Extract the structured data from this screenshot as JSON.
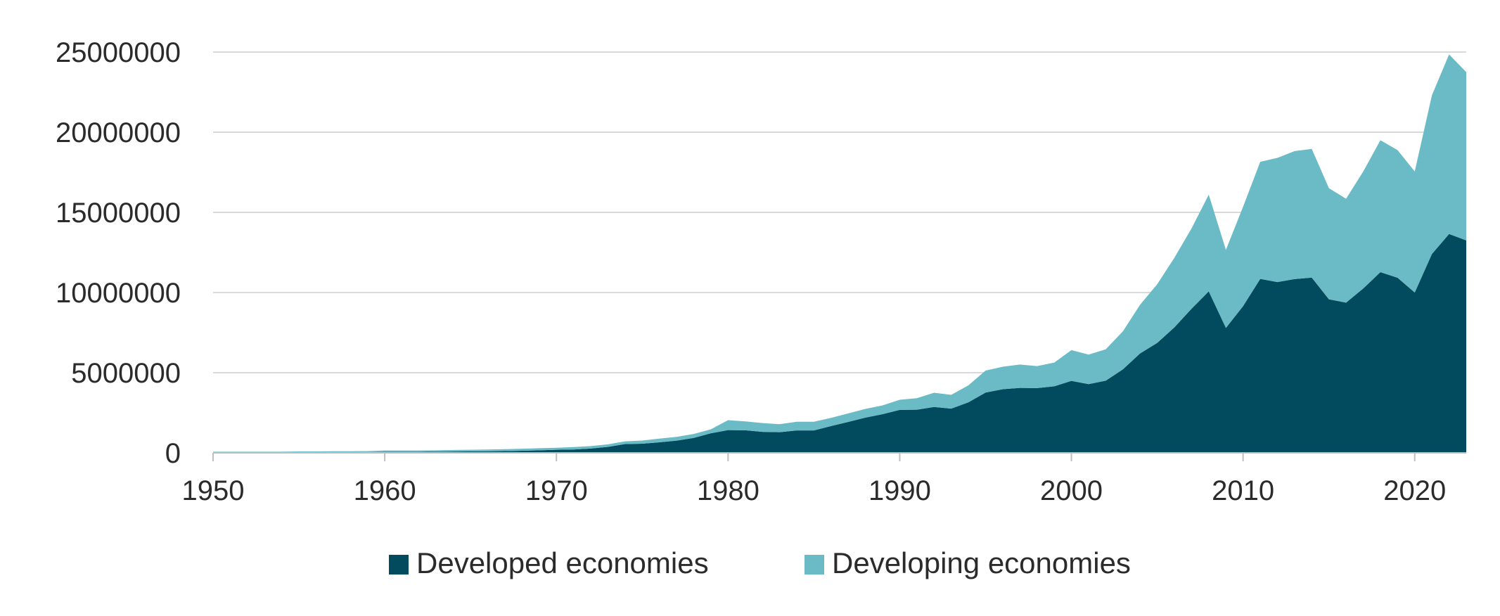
{
  "colors": {
    "developed": "#024A5E",
    "developing": "#6BBBC6",
    "grid": "#d9d9d9",
    "axis": "#bfbfbf",
    "text": "#2b2b2b"
  },
  "chart_data": {
    "type": "area",
    "stacked": true,
    "title": "",
    "xlabel": "",
    "ylabel": "",
    "xlim": [
      1950,
      2023
    ],
    "ylim": [
      0,
      25000000
    ],
    "grid": true,
    "legend_position": "bottom",
    "x_ticks": [
      "1950",
      "1960",
      "1970",
      "1980",
      "1990",
      "2000",
      "2010",
      "2020"
    ],
    "y_ticks": [
      "0",
      "5000000",
      "10000000",
      "15000000",
      "20000000",
      "25000000"
    ],
    "x": [
      1950,
      1951,
      1952,
      1953,
      1954,
      1955,
      1956,
      1957,
      1958,
      1959,
      1960,
      1961,
      1962,
      1963,
      1964,
      1965,
      1966,
      1967,
      1968,
      1969,
      1970,
      1971,
      1972,
      1973,
      1974,
      1975,
      1976,
      1977,
      1978,
      1979,
      1980,
      1981,
      1982,
      1983,
      1984,
      1985,
      1986,
      1987,
      1988,
      1989,
      1990,
      1991,
      1992,
      1993,
      1994,
      1995,
      1996,
      1997,
      1998,
      1999,
      2000,
      2001,
      2002,
      2003,
      2004,
      2005,
      2006,
      2007,
      2008,
      2009,
      2010,
      2011,
      2012,
      2013,
      2014,
      2015,
      2016,
      2017,
      2018,
      2019,
      2020,
      2021,
      2022,
      2023
    ],
    "series": [
      {
        "name": "Developed economies",
        "color_key": "developed",
        "values": [
          30000,
          30000,
          30000,
          30000,
          30000,
          40000,
          40000,
          40000,
          40000,
          50000,
          60000,
          60000,
          60000,
          70000,
          80000,
          90000,
          100000,
          110000,
          130000,
          160000,
          190000,
          210000,
          270000,
          370000,
          550000,
          570000,
          660000,
          760000,
          930000,
          1220000,
          1420000,
          1410000,
          1310000,
          1290000,
          1400000,
          1400000,
          1670000,
          1930000,
          2200000,
          2410000,
          2680000,
          2690000,
          2860000,
          2760000,
          3150000,
          3760000,
          3970000,
          4050000,
          4040000,
          4150000,
          4490000,
          4290000,
          4500000,
          5210000,
          6200000,
          6860000,
          7830000,
          8990000,
          10070000,
          7790000,
          9150000,
          10850000,
          10650000,
          10840000,
          10930000,
          9580000,
          9370000,
          10250000,
          11270000,
          10920000,
          10000000,
          12400000,
          13650000,
          13250000
        ]
      },
      {
        "name": "Developing economies",
        "color_key": "developing",
        "values": [
          40000,
          40000,
          40000,
          40000,
          40000,
          50000,
          50000,
          60000,
          60000,
          60000,
          90000,
          90000,
          90000,
          90000,
          100000,
          100000,
          110000,
          120000,
          130000,
          130000,
          130000,
          150000,
          150000,
          160000,
          170000,
          200000,
          230000,
          240000,
          250000,
          250000,
          620000,
          550000,
          550000,
          500000,
          540000,
          540000,
          510000,
          530000,
          540000,
          550000,
          630000,
          720000,
          890000,
          860000,
          1060000,
          1370000,
          1400000,
          1460000,
          1370000,
          1480000,
          1920000,
          1840000,
          1960000,
          2370000,
          3040000,
          3660000,
          4340000,
          5010000,
          6030000,
          4870000,
          6200000,
          7300000,
          7750000,
          7980000,
          8030000,
          6930000,
          6480000,
          7300000,
          8230000,
          7960000,
          7550000,
          9900000,
          11200000,
          10500000
        ]
      }
    ]
  }
}
